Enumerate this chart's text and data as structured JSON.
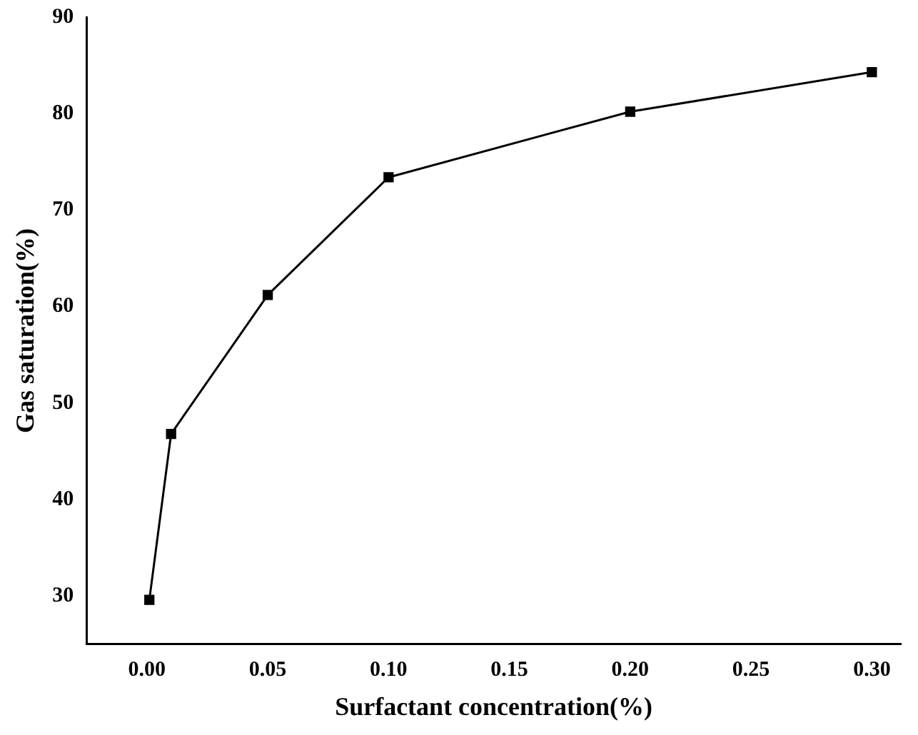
{
  "chart_data": {
    "type": "line",
    "xlabel": "Surfactant concentration(%)",
    "ylabel": "Gas saturation(%)",
    "x": [
      0.001,
      0.01,
      0.05,
      0.1,
      0.2,
      0.3
    ],
    "series": [
      {
        "color": "#000000",
        "values": [
          29.6,
          46.8,
          61.2,
          73.4,
          80.2,
          84.3
        ]
      }
    ],
    "xlim": [
      -0.025,
      0.312
    ],
    "xticks": [
      {
        "value": 0,
        "label": "0.00"
      },
      {
        "value": 0.05,
        "label": "0.05"
      },
      {
        "value": 0.1,
        "label": "0.10"
      },
      {
        "value": 0.15,
        "label": "0.15"
      },
      {
        "value": 0.2,
        "label": "0.20"
      },
      {
        "value": 0.25,
        "label": "0.25"
      },
      {
        "value": 0.3,
        "label": "0.30"
      }
    ],
    "ylim": [
      25,
      90
    ],
    "yticks": [
      30,
      40,
      50,
      60,
      70,
      80,
      90
    ],
    "grid": false,
    "legend": false,
    "marker": "square",
    "line_style": "solid"
  }
}
